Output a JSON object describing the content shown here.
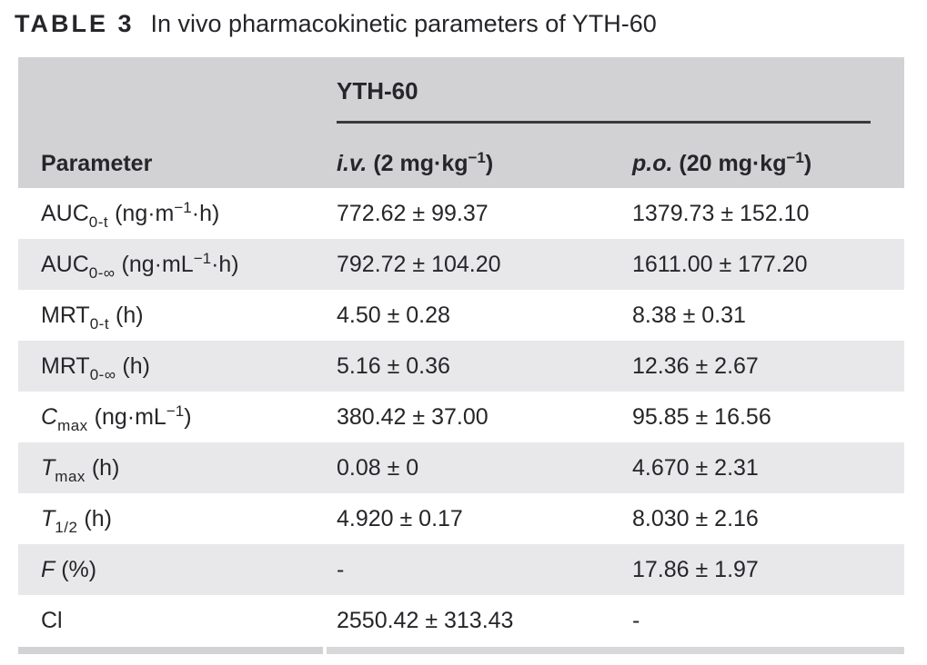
{
  "colors": {
    "text": "#26262a",
    "header_bg": "#d2d2d4",
    "row_alt_bg": "#e8e8ea",
    "rule": "#3a3a3c",
    "bottom_bar_left": "#d2d2d4",
    "bottom_bar_right": "#d8d8da"
  },
  "title": {
    "label": "TABLE 3",
    "text": "In vivo pharmacokinetic parameters of YTH-60"
  },
  "table": {
    "group_header": "YTH-60",
    "columns": [
      {
        "name": "parameter",
        "segs": [
          {
            "t": "Parameter"
          }
        ]
      },
      {
        "name": "iv-dose",
        "segs": [
          {
            "t": "i.v.",
            "it": true
          },
          {
            "t": " (2 mg·kg"
          },
          {
            "t": "−1",
            "pos": "sup"
          },
          {
            "t": ")"
          }
        ]
      },
      {
        "name": "po-dose",
        "segs": [
          {
            "t": "p.o.",
            "it": true
          },
          {
            "t": " (20 mg·kg"
          },
          {
            "t": "−1",
            "pos": "sup"
          },
          {
            "t": ")"
          }
        ]
      }
    ],
    "rows": [
      {
        "param": [
          {
            "t": "AUC"
          },
          {
            "t": "0-t",
            "pos": "sub"
          },
          {
            "t": " (ng·m"
          },
          {
            "t": "−1",
            "pos": "sup"
          },
          {
            "t": "·h)"
          }
        ],
        "iv": "772.62 ± 99.37",
        "po": "1379.73 ± 152.10"
      },
      {
        "param": [
          {
            "t": "AUC"
          },
          {
            "t": "0-∞",
            "pos": "sub"
          },
          {
            "t": " (ng·mL"
          },
          {
            "t": "−1",
            "pos": "sup"
          },
          {
            "t": "·h)"
          }
        ],
        "iv": "792.72 ± 104.20",
        "po": "1611.00 ± 177.20"
      },
      {
        "param": [
          {
            "t": "MRT"
          },
          {
            "t": "0-t",
            "pos": "sub"
          },
          {
            "t": " (h)"
          }
        ],
        "iv": "4.50 ± 0.28",
        "po": "8.38 ± 0.31"
      },
      {
        "param": [
          {
            "t": "MRT"
          },
          {
            "t": "0-∞",
            "pos": "sub"
          },
          {
            "t": " (h)"
          }
        ],
        "iv": "5.16 ± 0.36",
        "po": "12.36 ± 2.67"
      },
      {
        "param": [
          {
            "t": "C",
            "it": true
          },
          {
            "t": "max",
            "pos": "sub"
          },
          {
            "t": " (ng·mL"
          },
          {
            "t": "−1",
            "pos": "sup"
          },
          {
            "t": ")"
          }
        ],
        "iv": "380.42 ± 37.00",
        "po": "95.85 ± 16.56"
      },
      {
        "param": [
          {
            "t": "T",
            "it": true
          },
          {
            "t": "max",
            "pos": "sub"
          },
          {
            "t": " (h)"
          }
        ],
        "iv": "0.08 ± 0",
        "po": "4.670 ± 2.31"
      },
      {
        "param": [
          {
            "t": "T",
            "it": true
          },
          {
            "t": "1/2",
            "pos": "sub"
          },
          {
            "t": " (h)"
          }
        ],
        "iv": "4.920 ± 0.17",
        "po": "8.030 ± 2.16"
      },
      {
        "param": [
          {
            "t": "F",
            "it": true
          },
          {
            "t": " (%)"
          }
        ],
        "iv": "-",
        "po": "17.86 ± 1.97"
      },
      {
        "param": [
          {
            "t": "Cl"
          }
        ],
        "iv": "2550.42 ± 313.43",
        "po": "-"
      }
    ]
  }
}
